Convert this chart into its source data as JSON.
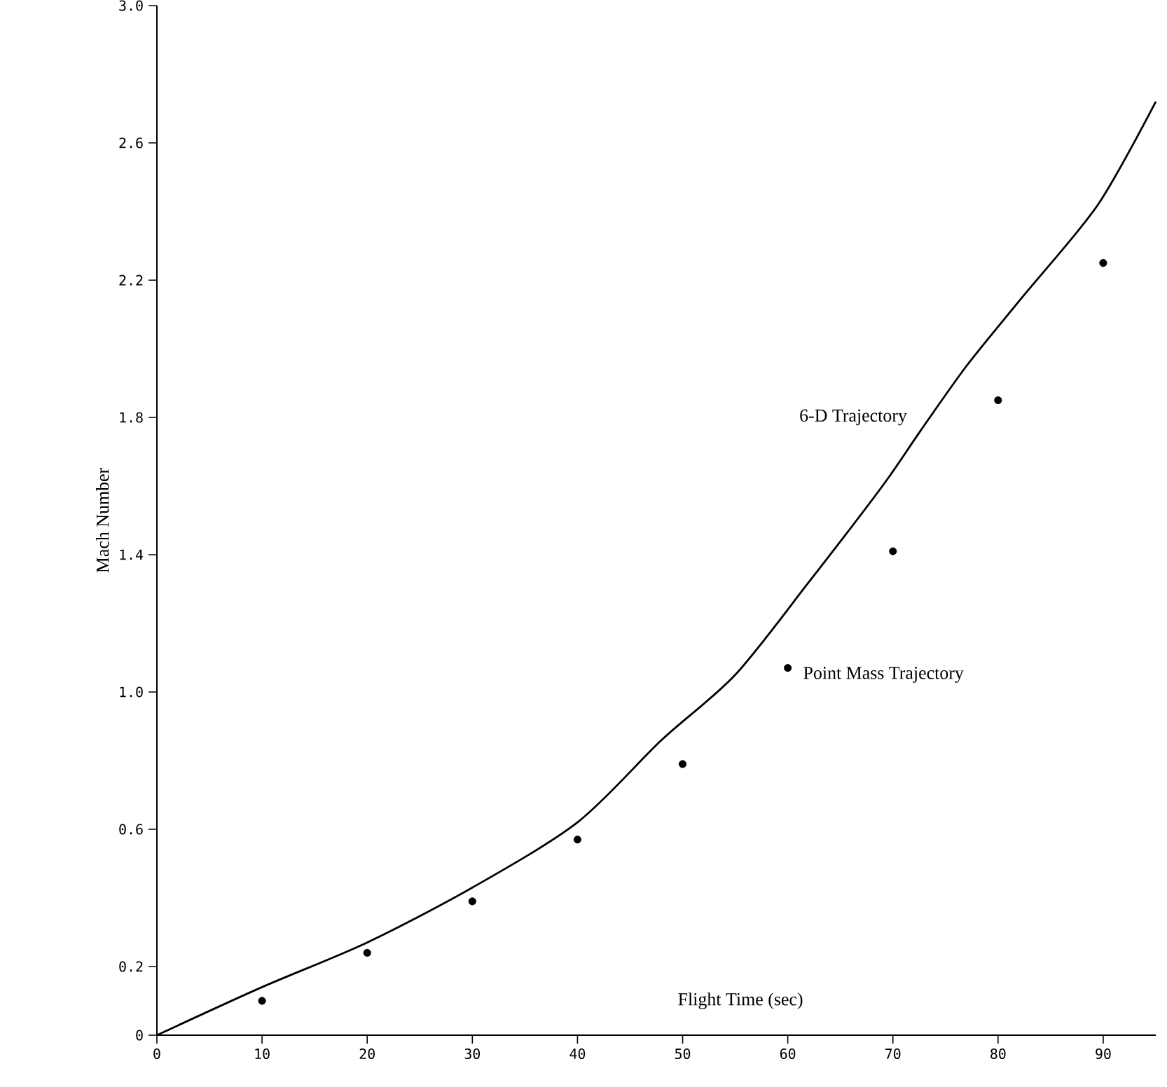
{
  "chart_data": {
    "type": "line",
    "xlabel": "Flight Time (sec)",
    "ylabel": "Mach Number",
    "xlim": [
      0,
      95
    ],
    "xticks": [
      0,
      10,
      20,
      30,
      40,
      50,
      60,
      70,
      80,
      90
    ],
    "ylim": [
      0,
      3.0
    ],
    "yticks": [
      0,
      0.2,
      0.6,
      {
        "value": 1.0,
        "label": "1.0"
      },
      1.4,
      1.8,
      2.2,
      2.6,
      {
        "value": 3.0,
        "label": "3.0"
      }
    ],
    "grid": false,
    "legend": false,
    "series": [
      {
        "name": "6-D Trajectory",
        "color": "#000000",
        "marker": "none",
        "line_style": "solid",
        "x": [
          0,
          10,
          20,
          30,
          40,
          48,
          55,
          62,
          69,
          72.6,
          77,
          82.3,
          89.5,
          95
        ],
        "values": [
          0,
          0.14,
          0.27,
          0.43,
          0.62,
          0.86,
          1.05,
          1.32,
          1.6,
          1.76,
          1.95,
          2.15,
          2.42,
          2.72
        ]
      },
      {
        "name": "Point Mass Trajectory",
        "type": "scatter",
        "color": "#000000",
        "marker": "circle",
        "x": [
          10,
          20,
          30,
          40,
          50,
          60,
          70,
          80,
          90
        ],
        "values": [
          0.1,
          0.24,
          0.39,
          0.57,
          0.79,
          1.07,
          1.41,
          1.85,
          2.25
        ]
      }
    ]
  }
}
